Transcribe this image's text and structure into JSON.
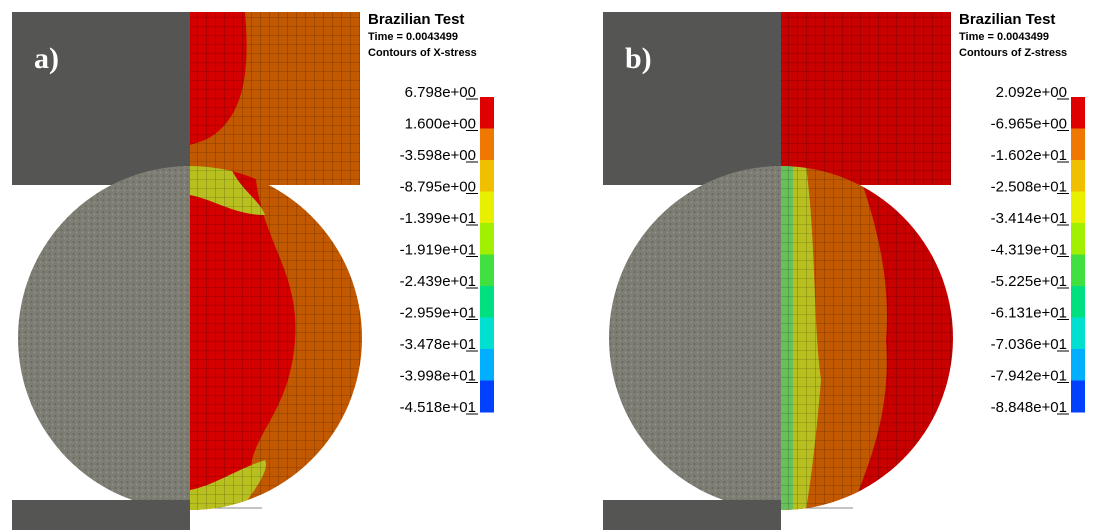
{
  "panels": [
    {
      "label": "a)",
      "title": "Brazilian Test",
      "time": "Time =  0.0043499",
      "contour": "Contours of X-stress",
      "levels": [
        "6.798e+00",
        "1.600e+00",
        "-3.598e+00",
        "-8.795e+00",
        "-1.399e+01",
        "-1.919e+01",
        "-2.439e+01",
        "-2.959e+01",
        "-3.478e+01",
        "-3.998e+01",
        "-4.518e+01"
      ]
    },
    {
      "label": "b)",
      "title": "Brazilian Test",
      "time": "Time =  0.0043499",
      "contour": "Contours of Z-stress",
      "levels": [
        "2.092e+00",
        "-6.965e+00",
        "-1.602e+01",
        "-2.508e+01",
        "-3.414e+01",
        "-4.319e+01",
        "-5.225e+01",
        "-6.131e+01",
        "-7.036e+01",
        "-7.942e+01",
        "-8.848e+01"
      ]
    }
  ]
}
